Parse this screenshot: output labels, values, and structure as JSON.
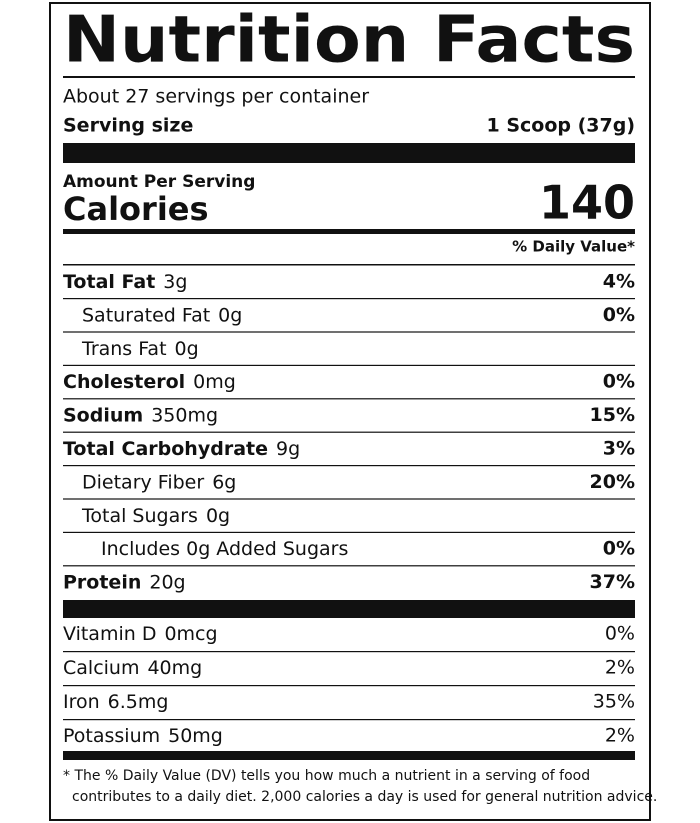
{
  "title": "Nutrition Facts",
  "servings": "About 27 servings per container",
  "serving_size": {
    "label": "Serving size",
    "value": "1 Scoop (37g)"
  },
  "amount_per_serving": "Amount Per Serving",
  "calories": {
    "label": "Calories",
    "value": "140"
  },
  "daily_value_header": "% Daily Value*",
  "nutrients": [
    {
      "name": "Total Fat",
      "amount": "3g",
      "dv": "4%",
      "bold": true,
      "indent": 0
    },
    {
      "name": "Saturated Fat",
      "amount": "0g",
      "dv": "0%",
      "bold": false,
      "indent": 1
    },
    {
      "name": "Trans Fat",
      "amount": "0g",
      "bold": false,
      "indent": 1
    },
    {
      "name": "Cholesterol",
      "amount": "0mg",
      "dv": "0%",
      "bold": true,
      "indent": 0
    },
    {
      "name": "Sodium",
      "amount": "350mg",
      "dv": "15%",
      "bold": true,
      "indent": 0
    },
    {
      "name": "Total Carbohydrate",
      "amount": "9g",
      "dv": "3%",
      "bold": true,
      "indent": 0
    },
    {
      "name": "Dietary Fiber",
      "amount": "6g",
      "dv": "20%",
      "bold": false,
      "indent": 1
    },
    {
      "name": "Total Sugars",
      "amount": "0g",
      "bold": false,
      "indent": 1
    },
    {
      "name": "Includes 0g Added Sugars",
      "dv": "0%",
      "bold": false,
      "indent": 2
    },
    {
      "name": "Protein",
      "amount": "20g",
      "dv": "37%",
      "bold": true,
      "indent": 0
    }
  ],
  "vitamins": [
    {
      "name": "Vitamin D",
      "amount": "0mcg",
      "dv": "0%"
    },
    {
      "name": "Calcium",
      "amount": "40mg",
      "dv": "2%"
    },
    {
      "name": "Iron",
      "amount": "6.5mg",
      "dv": "35%"
    },
    {
      "name": "Potassium",
      "amount": "50mg",
      "dv": "2%"
    }
  ],
  "footnote": [
    "* The % Daily Value (DV) tells you how much a nutrient in a serving of food",
    "contributes to a daily diet. 2,000 calories a day is used for general nutrition advice."
  ]
}
